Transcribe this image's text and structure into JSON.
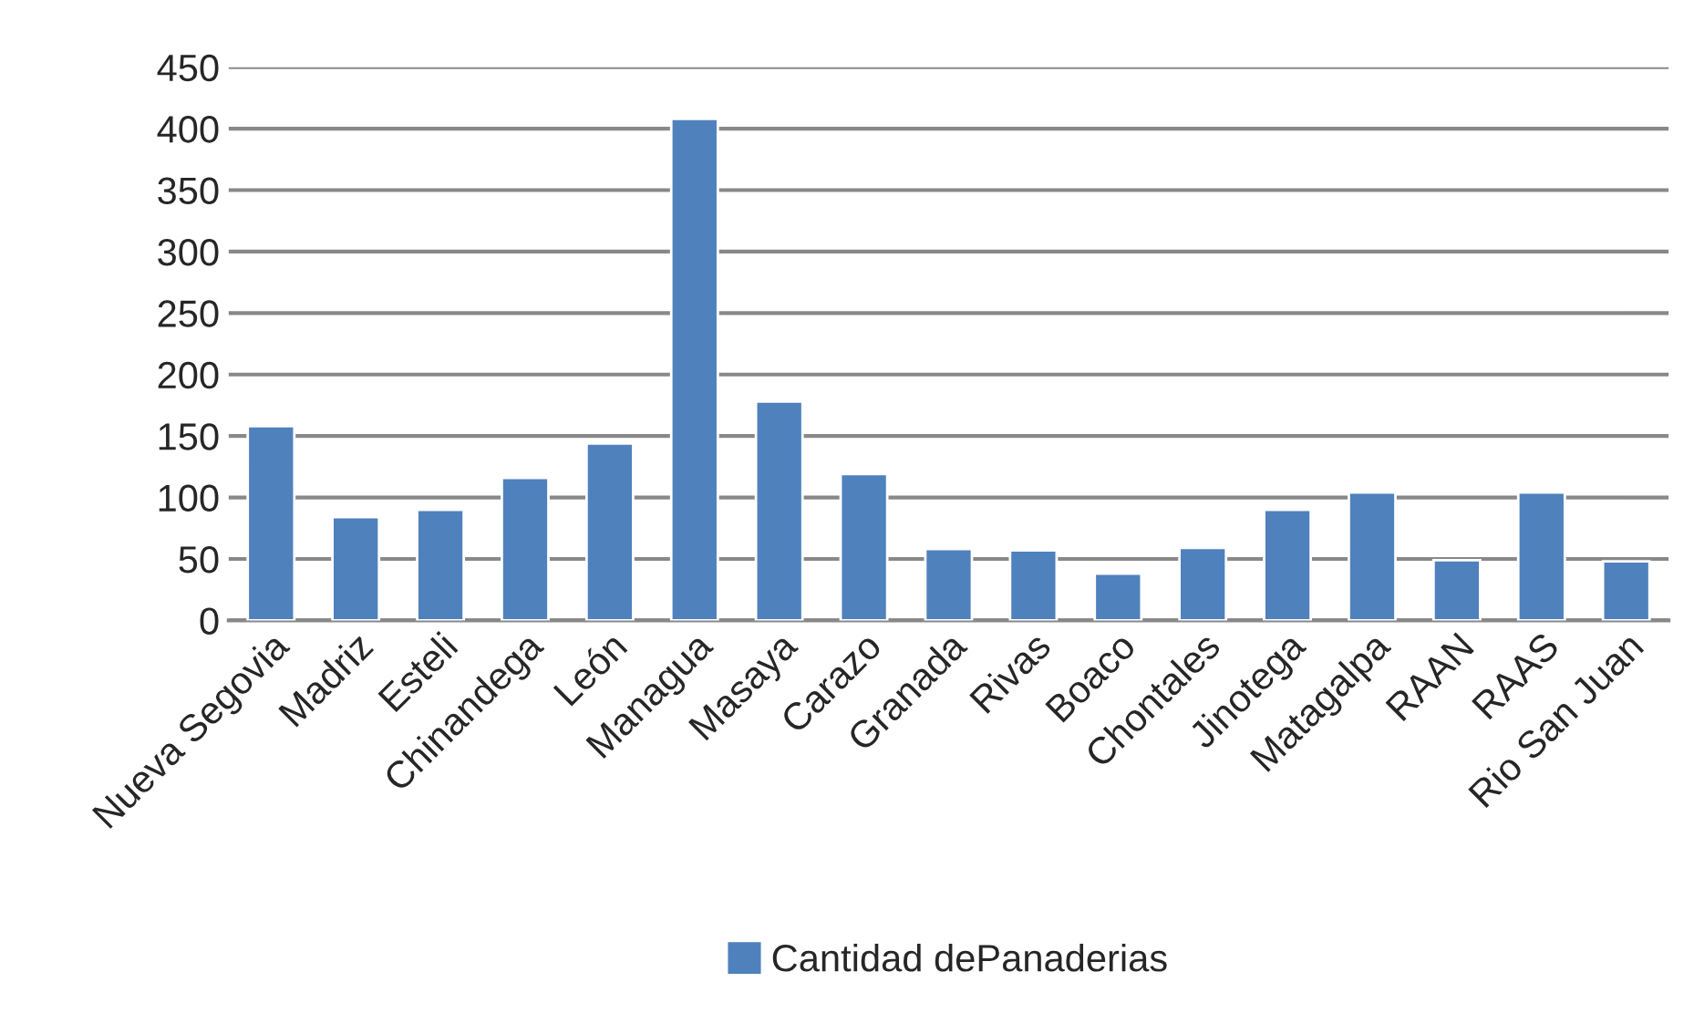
{
  "chart_data": {
    "type": "bar",
    "categories": [
      "Nueva Segovia",
      "Madriz",
      "Esteli",
      "Chinandega",
      "León",
      "Managua",
      "Masaya",
      "Carazo",
      "Granada",
      "Rivas",
      "Boaco",
      "Chontales",
      "Jinotega",
      "Matagalpa",
      "RAAN",
      "RAAS",
      "Rio San Juan"
    ],
    "series": [
      {
        "name": "Cantidad dePanaderias",
        "color": "#4f81bd",
        "values": [
          158,
          84,
          90,
          116,
          144,
          408,
          178,
          119,
          58,
          57,
          38,
          59,
          90,
          104,
          49,
          104,
          48
        ]
      }
    ],
    "ylim": [
      0,
      450
    ],
    "yticks": [
      0,
      50,
      100,
      150,
      200,
      250,
      300,
      350,
      400,
      450
    ],
    "grid": "y",
    "legend": "bottom"
  }
}
